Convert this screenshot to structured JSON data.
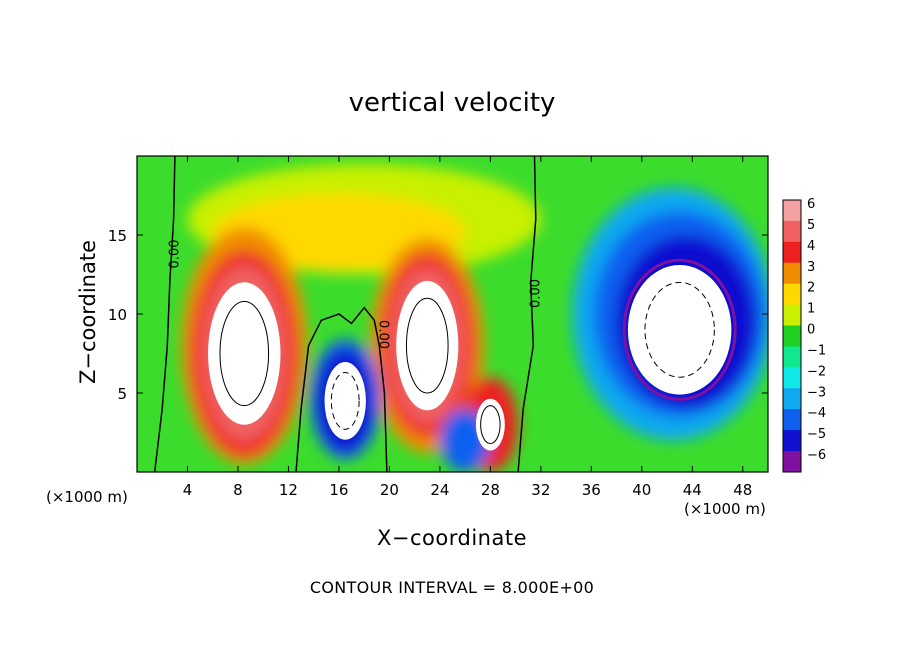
{
  "title": "vertical velocity",
  "xlabel": "X−coordinate",
  "ylabel": "Z−coordinate",
  "x_unit_left": "(×1000 m)",
  "x_unit_right": "(×1000 m)",
  "contour_interval": "CONTOUR INTERVAL = 8.000E+00",
  "chart_data": {
    "type": "heatmap",
    "title": "vertical velocity",
    "xlabel": "X-coordinate",
    "ylabel": "Z-coordinate",
    "x_unit": "(×1000 m)",
    "xlim": [
      0,
      50
    ],
    "ylim": [
      0,
      20
    ],
    "x_ticks": [
      4,
      8,
      12,
      16,
      20,
      24,
      28,
      32,
      36,
      40,
      44,
      48
    ],
    "y_ticks": [
      5,
      10,
      15
    ],
    "colorbar": {
      "values": [
        6,
        5,
        4,
        3,
        2,
        1,
        0,
        -1,
        -2,
        -3,
        -4,
        -5,
        -6
      ],
      "labels": [
        "6",
        "5",
        "4",
        "3",
        "2",
        "1",
        "0",
        "−1",
        "−2",
        "−3",
        "−4",
        "−5",
        "−6"
      ],
      "colors": [
        "#f4a0a0",
        "#f06060",
        "#ee2020",
        "#f08c00",
        "#ffd800",
        "#c8f000",
        "#20d020",
        "#10e890",
        "#10e8e8",
        "#10a8f0",
        "#1060f0",
        "#1010d0",
        "#8010a0"
      ]
    },
    "contour_labels": [
      "0.00",
      "0.00",
      "0.00"
    ],
    "features": [
      {
        "kind": "updraft",
        "center": [
          8.5,
          7.5
        ],
        "radius": [
          3.5,
          5.5
        ],
        "peak": 8
      },
      {
        "kind": "updraft",
        "center": [
          23,
          8
        ],
        "radius": [
          3,
          5
        ],
        "peak": 8
      },
      {
        "kind": "updraft",
        "center": [
          28,
          3
        ],
        "radius": [
          1.4,
          2
        ],
        "peak": 8
      },
      {
        "kind": "downdraft",
        "center": [
          16.5,
          4.5
        ],
        "radius": [
          2,
          3
        ],
        "peak": -8
      },
      {
        "kind": "downdraft",
        "center": [
          43,
          9
        ],
        "radius": [
          5,
          5
        ],
        "peak": -8
      }
    ]
  }
}
